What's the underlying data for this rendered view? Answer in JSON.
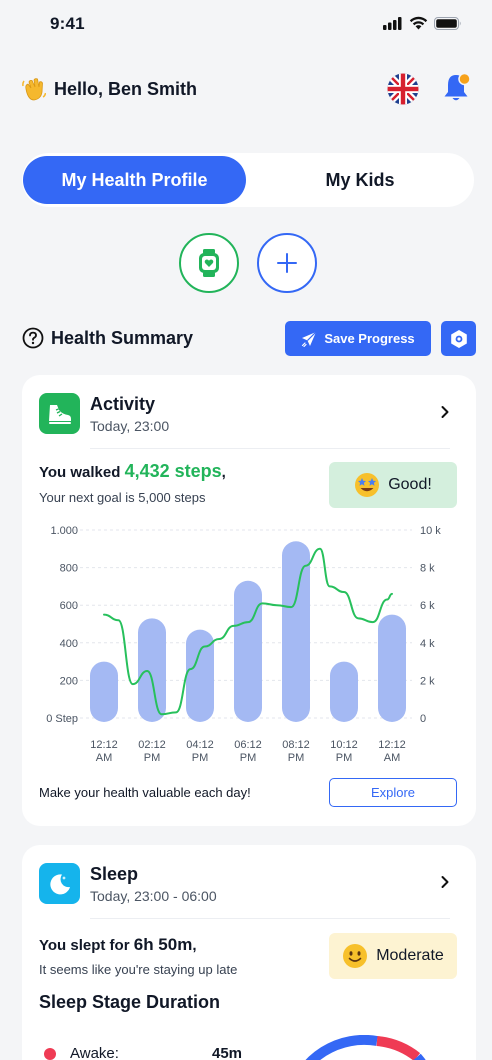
{
  "status_bar": {
    "time": "9:41"
  },
  "greeting": {
    "text": "Hello, Ben Smith",
    "icon": "waving-hand-icon"
  },
  "header": {
    "flag_icon": "uk-flag-icon",
    "bell_icon": "bell-icon",
    "bell_badge_color": "#f7a21b"
  },
  "tabs": [
    {
      "label": "My Health Profile",
      "active": true
    },
    {
      "label": "My Kids",
      "active": false
    }
  ],
  "devices": {
    "watch_icon": "smartwatch-icon",
    "add_icon": "plus-icon"
  },
  "summary": {
    "title": "Health Summary",
    "save_label": "Save Progress",
    "settings_icon": "gear-icon"
  },
  "activity": {
    "title": "Activity",
    "subtitle": "Today, 23:00",
    "walked_prefix": "You walked ",
    "walked_value": "4,432 steps",
    "walked_suffix": ",",
    "goal_text": "Your next goal is 5,000 steps",
    "badge_label": "Good!",
    "footer_text": "Make your health valuable each day!",
    "explore_label": "Explore"
  },
  "chart_data": {
    "type": "bar",
    "categories": [
      "12:12 AM",
      "02:12 PM",
      "04:12 PM",
      "06:12 PM",
      "08:12 PM",
      "10:12 PM",
      "12:12 AM"
    ],
    "category_lines": [
      [
        "12:12",
        "AM"
      ],
      [
        "02:12",
        "PM"
      ],
      [
        "04:12",
        "PM"
      ],
      [
        "06:12",
        "PM"
      ],
      [
        "08:12",
        "PM"
      ],
      [
        "10:12",
        "PM"
      ],
      [
        "12:12",
        "AM"
      ]
    ],
    "left_ticks": [
      "0 Step",
      "200",
      "400",
      "600",
      "800",
      "1.000"
    ],
    "right_ticks": [
      "0",
      "2 k",
      "4 k",
      "6 k",
      "8 k",
      "10 k"
    ],
    "ylim": [
      0,
      1000
    ],
    "y2lim": [
      0,
      10000
    ],
    "series": [
      {
        "type": "bar",
        "values": [
          300,
          530,
          470,
          730,
          940,
          300,
          550
        ],
        "color": "#a4b9f3"
      },
      {
        "type": "line",
        "axis": "right",
        "color": "#27c05c",
        "x": [
          0,
          0.3,
          0.6,
          0.9,
          1.2,
          1.5,
          1.8,
          2.1,
          2.4,
          2.7,
          3.0,
          3.3,
          3.6,
          3.9,
          4.2,
          4.5,
          4.7,
          5.0,
          5.3,
          5.6,
          5.9,
          6.0
        ],
        "values": [
          5500,
          5200,
          1800,
          2500,
          200,
          300,
          2600,
          3800,
          4200,
          4900,
          5100,
          6100,
          6000,
          5900,
          8100,
          9000,
          7000,
          6700,
          5300,
          5100,
          6300,
          6600
        ]
      }
    ]
  },
  "sleep": {
    "title": "Sleep",
    "subtitle": "Today, 23:00 - 06:00",
    "slept_prefix": "You slept for ",
    "slept_value": "6h 50m",
    "slept_suffix": ",",
    "note": "It seems like you're staying up late",
    "badge_label": "Moderate",
    "stage_title": "Sleep Stage Duration",
    "stages": [
      {
        "label": "Awake:",
        "value": "45m",
        "color": "#ef3b54"
      }
    ]
  }
}
